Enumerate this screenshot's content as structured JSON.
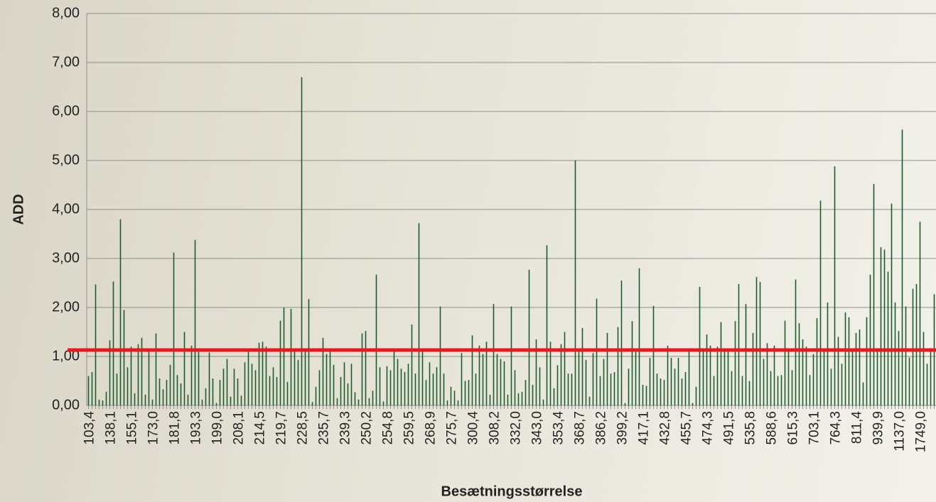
{
  "chart_data": {
    "type": "bar",
    "x_label": "Besætningsstørrelse",
    "y_label": "ADD",
    "color": "#1d5c2c",
    "grid": true,
    "reference_line": {
      "value": 1.13,
      "color": "#e8191e"
    },
    "ylim": [
      0,
      8
    ],
    "yticks": [
      {
        "value": 0,
        "label": "0,00"
      },
      {
        "value": 1,
        "label": "1,00"
      },
      {
        "value": 2,
        "label": "2,00"
      },
      {
        "value": 3,
        "label": "3,00"
      },
      {
        "value": 4,
        "label": "4,00"
      },
      {
        "value": 5,
        "label": "5,00"
      },
      {
        "value": 6,
        "label": "6,00"
      },
      {
        "value": 7,
        "label": "7,00"
      },
      {
        "value": 8,
        "label": "8,00"
      }
    ],
    "categories": [
      "103,4",
      null,
      null,
      null,
      null,
      null,
      "138,1",
      null,
      null,
      null,
      null,
      null,
      "155,1",
      null,
      null,
      null,
      null,
      null,
      "173,0",
      null,
      null,
      null,
      null,
      null,
      "181,8",
      null,
      null,
      null,
      null,
      null,
      "193,3",
      null,
      null,
      null,
      null,
      null,
      "199,0",
      null,
      null,
      null,
      null,
      null,
      "208,1",
      null,
      null,
      null,
      null,
      null,
      "214,5",
      null,
      null,
      null,
      null,
      null,
      "219,7",
      null,
      null,
      null,
      null,
      null,
      "228,5",
      null,
      null,
      null,
      null,
      null,
      "235,7",
      null,
      null,
      null,
      null,
      null,
      "239,3",
      null,
      null,
      null,
      null,
      null,
      "250,2",
      null,
      null,
      null,
      null,
      null,
      "254,8",
      null,
      null,
      null,
      null,
      null,
      "259,5",
      null,
      null,
      null,
      null,
      null,
      "268,9",
      null,
      null,
      null,
      null,
      null,
      "275,7",
      null,
      null,
      null,
      null,
      null,
      "300,4",
      null,
      null,
      null,
      null,
      null,
      "308,2",
      null,
      null,
      null,
      null,
      null,
      "332,0",
      null,
      null,
      null,
      null,
      null,
      "343,0",
      null,
      null,
      null,
      null,
      null,
      "353,4",
      null,
      null,
      null,
      null,
      null,
      "368,7",
      null,
      null,
      null,
      null,
      null,
      "386,2",
      null,
      null,
      null,
      null,
      null,
      "399,2",
      null,
      null,
      null,
      null,
      null,
      "417,1",
      null,
      null,
      null,
      null,
      null,
      "432,8",
      null,
      null,
      null,
      null,
      null,
      "455,7",
      null,
      null,
      null,
      null,
      null,
      "474,3",
      null,
      null,
      null,
      null,
      null,
      "491,5",
      null,
      null,
      null,
      null,
      null,
      "535,8",
      null,
      null,
      null,
      null,
      null,
      "588,6",
      null,
      null,
      null,
      null,
      null,
      "615,3",
      null,
      null,
      null,
      null,
      null,
      "703,1",
      null,
      null,
      null,
      null,
      null,
      "764,3",
      null,
      null,
      null,
      null,
      null,
      "811,4",
      null,
      null,
      null,
      null,
      null,
      "939,9",
      null,
      null,
      null,
      null,
      null,
      "1137,0",
      null,
      null,
      null,
      null,
      null,
      "1749,0",
      null,
      null,
      null,
      null
    ],
    "values": [
      0.6,
      0.68,
      2.47,
      0.12,
      0.1,
      0.28,
      1.33,
      2.53,
      0.65,
      3.8,
      1.95,
      0.78,
      1.2,
      0.25,
      1.25,
      1.38,
      0.22,
      1.15,
      0.12,
      1.47,
      0.55,
      0.33,
      0.52,
      0.83,
      3.12,
      0.62,
      0.45,
      1.5,
      0.22,
      1.22,
      3.38,
      1.1,
      0.12,
      0.35,
      1.08,
      0.55,
      0.05,
      0.52,
      0.75,
      0.95,
      0.18,
      0.75,
      0.55,
      0.2,
      0.88,
      1.1,
      0.85,
      0.72,
      1.28,
      1.3,
      1.2,
      0.6,
      0.78,
      0.58,
      1.73,
      2.0,
      0.48,
      1.97,
      1.1,
      0.93,
      6.7,
      1.1,
      2.17,
      0.07,
      0.38,
      0.72,
      1.38,
      1.05,
      1.1,
      0.83,
      0.15,
      0.58,
      0.88,
      0.45,
      0.85,
      0.27,
      0.12,
      1.47,
      1.52,
      0.15,
      0.3,
      2.67,
      0.78,
      0.08,
      0.8,
      0.72,
      1.1,
      0.95,
      0.75,
      0.68,
      0.85,
      1.65,
      0.65,
      3.72,
      1.1,
      0.52,
      0.88,
      0.65,
      0.78,
      2.02,
      0.65,
      0.1,
      0.38,
      0.3,
      0.1,
      1.07,
      0.5,
      0.52,
      1.43,
      0.65,
      1.22,
      1.05,
      1.3,
      0.22,
      2.07,
      1.05,
      0.95,
      0.9,
      0.22,
      2.02,
      0.72,
      0.25,
      0.28,
      0.52,
      2.77,
      0.42,
      1.35,
      0.78,
      0.12,
      3.27,
      1.3,
      0.35,
      0.82,
      1.25,
      1.5,
      0.65,
      0.65,
      5.0,
      1.1,
      1.58,
      0.93,
      0.18,
      1.07,
      2.18,
      0.6,
      0.95,
      1.48,
      0.65,
      0.68,
      1.6,
      2.55,
      0.05,
      0.75,
      1.72,
      1.1,
      2.8,
      0.42,
      0.4,
      0.97,
      2.03,
      0.65,
      0.55,
      0.52,
      1.22,
      0.97,
      0.75,
      0.97,
      0.55,
      0.68,
      1.1,
      0.05,
      0.38,
      2.42,
      1.1,
      1.45,
      1.22,
      0.6,
      1.2,
      1.7,
      1.1,
      1.1,
      0.7,
      1.72,
      2.48,
      0.6,
      2.07,
      0.5,
      1.48,
      2.62,
      2.52,
      0.95,
      1.27,
      0.7,
      1.22,
      0.6,
      0.62,
      1.73,
      1.1,
      0.72,
      2.57,
      1.68,
      1.35,
      1.2,
      0.62,
      1.05,
      1.78,
      4.18,
      1.1,
      2.1,
      0.75,
      4.88,
      1.4,
      0.85,
      1.9,
      1.8,
      1.1,
      1.48,
      1.55,
      0.47,
      1.8,
      2.67,
      4.52,
      1.1,
      3.23,
      3.18,
      2.73,
      4.12,
      2.1,
      1.52,
      5.63,
      2.02,
      0.98,
      2.38,
      2.48,
      3.75,
      1.5,
      0.85,
      1.17,
      2.27
    ]
  }
}
